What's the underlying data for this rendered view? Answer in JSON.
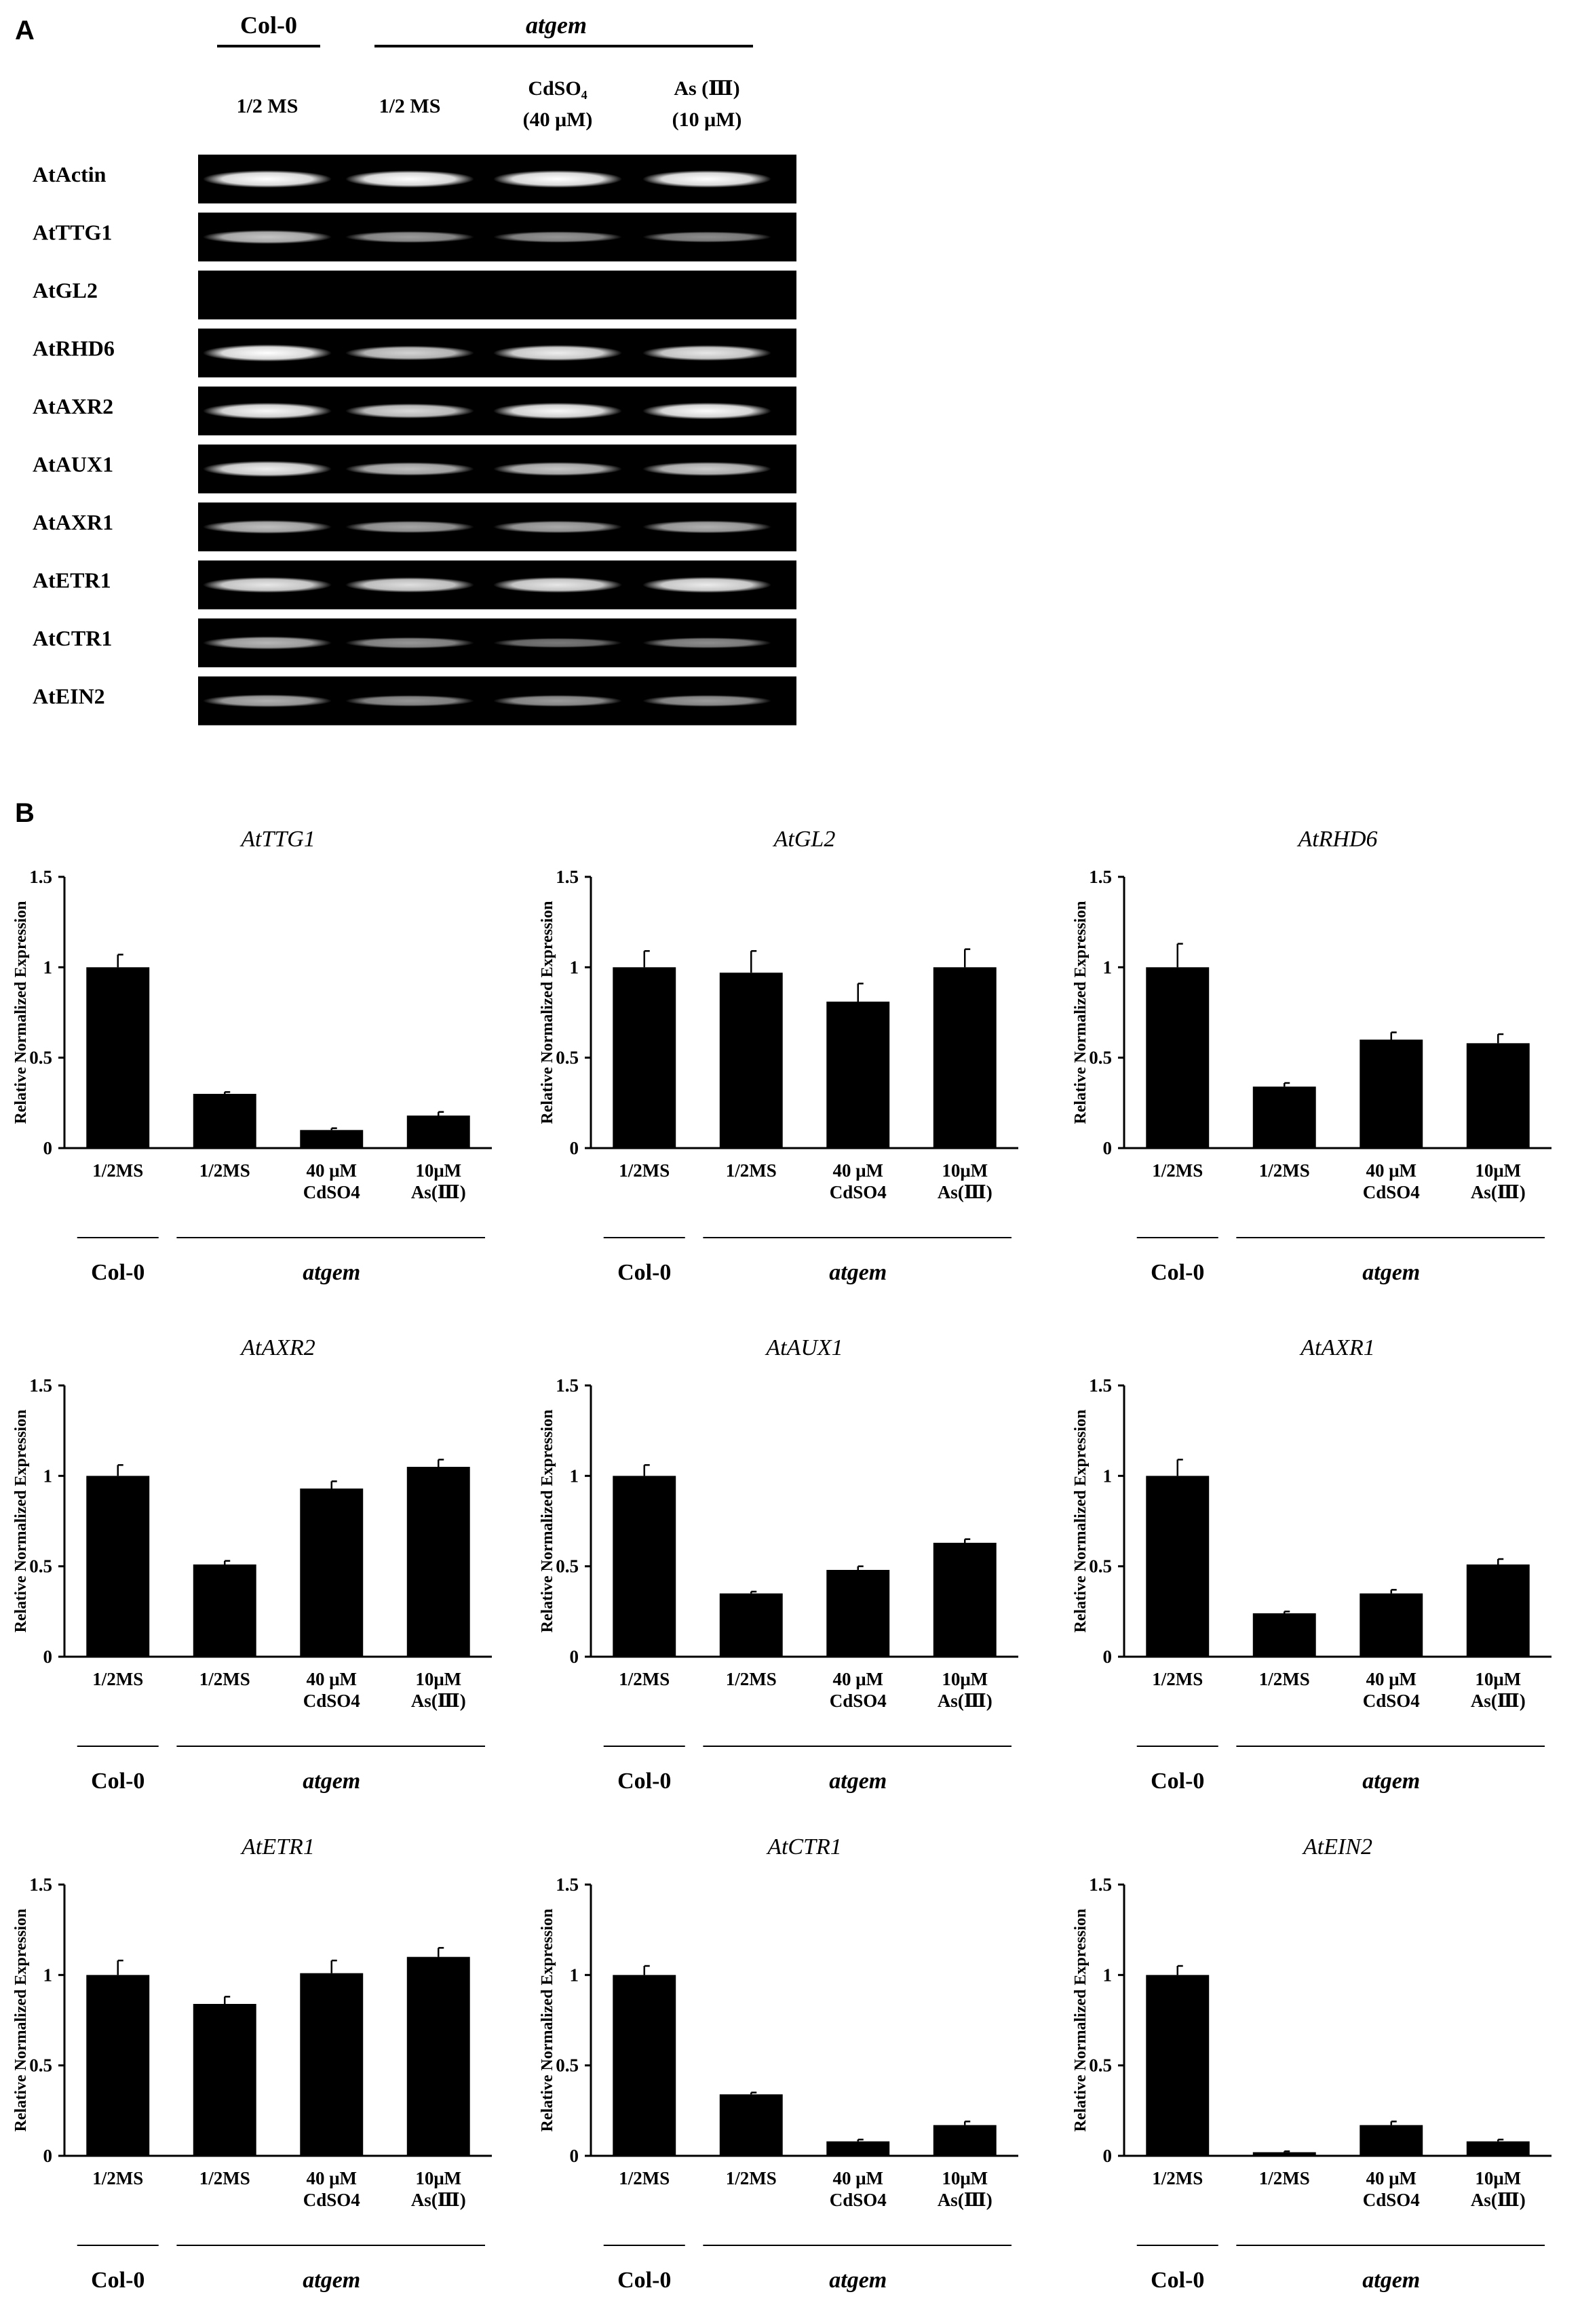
{
  "figure": {
    "panel_a_label": "A",
    "panel_b_label": "B"
  },
  "gel": {
    "group_col0": "Col-0",
    "group_atgem": "atgem",
    "lanes": [
      {
        "line1": "1/2 MS",
        "line2": ""
      },
      {
        "line1": "1/2 MS",
        "line2": ""
      },
      {
        "line1": "CdSO₄",
        "line2": "(40 μM)"
      },
      {
        "line1": "As (Ⅲ)",
        "line2": "(10 μM)"
      }
    ],
    "genes": [
      {
        "name": "AtActin",
        "intensities": [
          0.98,
          0.96,
          0.98,
          0.97
        ]
      },
      {
        "name": "AtTTG1",
        "intensities": [
          0.65,
          0.45,
          0.42,
          0.38
        ]
      },
      {
        "name": "AtGL2",
        "intensities": [
          0.0,
          0.0,
          0.0,
          0.0
        ]
      },
      {
        "name": "AtRHD6",
        "intensities": [
          0.95,
          0.72,
          0.85,
          0.82
        ]
      },
      {
        "name": "AtAXR2",
        "intensities": [
          0.9,
          0.75,
          0.9,
          0.92
        ]
      },
      {
        "name": "AtAUX1",
        "intensities": [
          0.85,
          0.62,
          0.65,
          0.68
        ]
      },
      {
        "name": "AtAXR1",
        "intensities": [
          0.62,
          0.5,
          0.52,
          0.55
        ]
      },
      {
        "name": "AtETR1",
        "intensities": [
          0.82,
          0.78,
          0.82,
          0.84
        ]
      },
      {
        "name": "AtCTR1",
        "intensities": [
          0.58,
          0.42,
          0.28,
          0.38
        ]
      },
      {
        "name": "AtEIN2",
        "intensities": [
          0.55,
          0.42,
          0.45,
          0.45
        ]
      }
    ],
    "colors": {
      "gel_background": "#000000",
      "band": "#ffffff"
    }
  },
  "chart_data": [
    {
      "type": "bar",
      "title": "AtTTG1",
      "ylabel": "Relative Normalized Expression",
      "ylim": [
        0,
        1.5
      ],
      "yticks": [
        "0",
        "0.5",
        "1",
        "1.5"
      ],
      "categories": [
        [
          "1/2MS"
        ],
        [
          "1/2MS"
        ],
        [
          "40 μM",
          "CdSO4"
        ],
        [
          "10μM",
          "As(Ⅲ)"
        ]
      ],
      "values": [
        1.0,
        0.3,
        0.1,
        0.18
      ],
      "errors": [
        0.07,
        0.01,
        0.01,
        0.02
      ],
      "groups": [
        {
          "label": "Col-0",
          "italic": false
        },
        {
          "label": "atgem",
          "italic": true
        }
      ]
    },
    {
      "type": "bar",
      "title": "AtGL2",
      "ylabel": "Relative Normalized Expression",
      "ylim": [
        0,
        1.5
      ],
      "yticks": [
        "0",
        "0.5",
        "1",
        "1.5"
      ],
      "categories": [
        [
          "1/2MS"
        ],
        [
          "1/2MS"
        ],
        [
          "40 μM",
          "CdSO4"
        ],
        [
          "10μM",
          "As(Ⅲ)"
        ]
      ],
      "values": [
        1.0,
        0.97,
        0.81,
        1.0
      ],
      "errors": [
        0.09,
        0.12,
        0.1,
        0.1
      ],
      "groups": [
        {
          "label": "Col-0",
          "italic": false
        },
        {
          "label": "atgem",
          "italic": true
        }
      ]
    },
    {
      "type": "bar",
      "title": "AtRHD6",
      "ylabel": "Relative Normalized Expression",
      "ylim": [
        0,
        1.5
      ],
      "yticks": [
        "0",
        "0.5",
        "1",
        "1.5"
      ],
      "categories": [
        [
          "1/2MS"
        ],
        [
          "1/2MS"
        ],
        [
          "40 μM",
          "CdSO4"
        ],
        [
          "10μM",
          "As(Ⅲ)"
        ]
      ],
      "values": [
        1.0,
        0.34,
        0.6,
        0.58
      ],
      "errors": [
        0.13,
        0.02,
        0.04,
        0.05
      ],
      "groups": [
        {
          "label": "Col-0",
          "italic": false
        },
        {
          "label": "atgem",
          "italic": true
        }
      ]
    },
    {
      "type": "bar",
      "title": "AtAXR2",
      "ylabel": "Relative Normalized Expression",
      "ylim": [
        0,
        1.5
      ],
      "yticks": [
        "0",
        "0.5",
        "1",
        "1.5"
      ],
      "categories": [
        [
          "1/2MS"
        ],
        [
          "1/2MS"
        ],
        [
          "40 μM",
          "CdSO4"
        ],
        [
          "10μM",
          "As(Ⅲ)"
        ]
      ],
      "values": [
        1.0,
        0.51,
        0.93,
        1.05
      ],
      "errors": [
        0.06,
        0.02,
        0.04,
        0.04
      ],
      "groups": [
        {
          "label": "Col-0",
          "italic": false
        },
        {
          "label": "atgem",
          "italic": true
        }
      ]
    },
    {
      "type": "bar",
      "title": "AtAUX1",
      "ylabel": "Relative Normalized Expression",
      "ylim": [
        0,
        1.5
      ],
      "yticks": [
        "0",
        "0.5",
        "1",
        "1.5"
      ],
      "categories": [
        [
          "1/2MS"
        ],
        [
          "1/2MS"
        ],
        [
          "40 μM",
          "CdSO4"
        ],
        [
          "10μM",
          "As(Ⅲ)"
        ]
      ],
      "values": [
        1.0,
        0.35,
        0.48,
        0.63
      ],
      "errors": [
        0.06,
        0.01,
        0.02,
        0.02
      ],
      "groups": [
        {
          "label": "Col-0",
          "italic": false
        },
        {
          "label": "atgem",
          "italic": true
        }
      ]
    },
    {
      "type": "bar",
      "title": "AtAXR1",
      "ylabel": "Relative Normalized Expression",
      "ylim": [
        0,
        1.5
      ],
      "yticks": [
        "0",
        "0.5",
        "1",
        "1.5"
      ],
      "categories": [
        [
          "1/2MS"
        ],
        [
          "1/2MS"
        ],
        [
          "40 μM",
          "CdSO4"
        ],
        [
          "10μM",
          "As(Ⅲ)"
        ]
      ],
      "values": [
        1.0,
        0.24,
        0.35,
        0.51
      ],
      "errors": [
        0.09,
        0.01,
        0.02,
        0.03
      ],
      "groups": [
        {
          "label": "Col-0",
          "italic": false
        },
        {
          "label": "atgem",
          "italic": true
        }
      ]
    },
    {
      "type": "bar",
      "title": "AtETR1",
      "ylabel": "Relative Normalized Expression",
      "ylim": [
        0,
        1.5
      ],
      "yticks": [
        "0",
        "0.5",
        "1",
        "1.5"
      ],
      "categories": [
        [
          "1/2MS"
        ],
        [
          "1/2MS"
        ],
        [
          "40 μM",
          "CdSO4"
        ],
        [
          "10μM",
          "As(Ⅲ)"
        ]
      ],
      "values": [
        1.0,
        0.84,
        1.01,
        1.1
      ],
      "errors": [
        0.08,
        0.04,
        0.07,
        0.05
      ],
      "groups": [
        {
          "label": "Col-0",
          "italic": false
        },
        {
          "label": "atgem",
          "italic": true
        }
      ]
    },
    {
      "type": "bar",
      "title": "AtCTR1",
      "ylabel": "Relative Normalized Expression",
      "ylim": [
        0,
        1.5
      ],
      "yticks": [
        "0",
        "0.5",
        "1",
        "1.5"
      ],
      "categories": [
        [
          "1/2MS"
        ],
        [
          "1/2MS"
        ],
        [
          "40 μM",
          "CdSO4"
        ],
        [
          "10μM",
          "As(Ⅲ)"
        ]
      ],
      "values": [
        1.0,
        0.34,
        0.08,
        0.17
      ],
      "errors": [
        0.05,
        0.01,
        0.01,
        0.02
      ],
      "groups": [
        {
          "label": "Col-0",
          "italic": false
        },
        {
          "label": "atgem",
          "italic": true
        }
      ]
    },
    {
      "type": "bar",
      "title": "AtEIN2",
      "ylabel": "Relative Normalized Expression",
      "ylim": [
        0,
        1.5
      ],
      "yticks": [
        "0",
        "0.5",
        "1",
        "1.5"
      ],
      "categories": [
        [
          "1/2MS"
        ],
        [
          "1/2MS"
        ],
        [
          "40 μM",
          "CdSO4"
        ],
        [
          "10μM",
          "As(Ⅲ)"
        ]
      ],
      "values": [
        1.0,
        0.02,
        0.17,
        0.08
      ],
      "errors": [
        0.05,
        0.005,
        0.02,
        0.01
      ],
      "groups": [
        {
          "label": "Col-0",
          "italic": false
        },
        {
          "label": "atgem",
          "italic": true
        }
      ]
    }
  ]
}
